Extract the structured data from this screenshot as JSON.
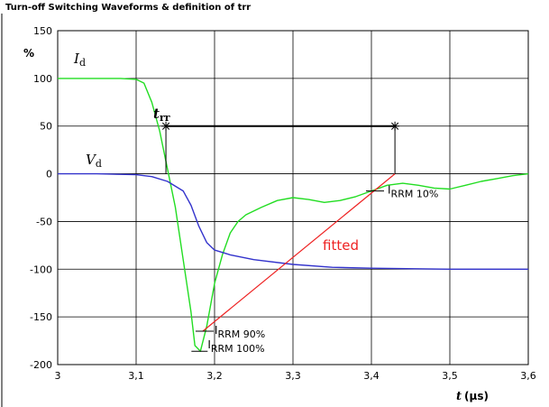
{
  "chart_data": {
    "type": "line",
    "title": "Turn-off  Switching Waveforms & definition of trr",
    "ylabel": "%",
    "xlabel_main": "t",
    "xlabel_unit": "(µs)",
    "xlim": [
      3.0,
      3.6
    ],
    "ylim": [
      -200,
      150
    ],
    "x_ticks": [
      3.0,
      3.1,
      3.2,
      3.3,
      3.4,
      3.5,
      3.6
    ],
    "x_tick_labels": [
      "3",
      "3,1",
      "3,2",
      "3,3",
      "3,4",
      "3,5",
      "3,6"
    ],
    "y_ticks": [
      150,
      100,
      50,
      0,
      -50,
      -100,
      -150,
      -200
    ],
    "y_tick_labels": [
      "150",
      "100",
      "50",
      "0",
      "-50",
      "-100",
      "-150",
      "-200"
    ],
    "grid": true,
    "series": [
      {
        "name": "Id",
        "color": "#22dd22",
        "points": [
          [
            3.0,
            100
          ],
          [
            3.02,
            100
          ],
          [
            3.04,
            100
          ],
          [
            3.06,
            100
          ],
          [
            3.08,
            100
          ],
          [
            3.1,
            99
          ],
          [
            3.11,
            95
          ],
          [
            3.12,
            75
          ],
          [
            3.13,
            45
          ],
          [
            3.14,
            5
          ],
          [
            3.15,
            -35
          ],
          [
            3.16,
            -90
          ],
          [
            3.17,
            -145
          ],
          [
            3.175,
            -180
          ],
          [
            3.182,
            -186
          ],
          [
            3.19,
            -160
          ],
          [
            3.2,
            -115
          ],
          [
            3.21,
            -85
          ],
          [
            3.22,
            -62
          ],
          [
            3.23,
            -50
          ],
          [
            3.24,
            -43
          ],
          [
            3.26,
            -35
          ],
          [
            3.28,
            -28
          ],
          [
            3.3,
            -25
          ],
          [
            3.32,
            -27
          ],
          [
            3.34,
            -30
          ],
          [
            3.36,
            -28
          ],
          [
            3.38,
            -24
          ],
          [
            3.4,
            -18
          ],
          [
            3.42,
            -12
          ],
          [
            3.44,
            -10
          ],
          [
            3.46,
            -12
          ],
          [
            3.48,
            -15
          ],
          [
            3.5,
            -16
          ],
          [
            3.52,
            -12
          ],
          [
            3.54,
            -8
          ],
          [
            3.56,
            -5
          ],
          [
            3.58,
            -2
          ],
          [
            3.6,
            0
          ]
        ]
      },
      {
        "name": "Vd",
        "color": "#3333cc",
        "points": [
          [
            3.0,
            0
          ],
          [
            3.05,
            0
          ],
          [
            3.1,
            -1
          ],
          [
            3.12,
            -3
          ],
          [
            3.14,
            -8
          ],
          [
            3.16,
            -18
          ],
          [
            3.17,
            -33
          ],
          [
            3.18,
            -55
          ],
          [
            3.19,
            -72
          ],
          [
            3.2,
            -80
          ],
          [
            3.22,
            -85
          ],
          [
            3.25,
            -90
          ],
          [
            3.3,
            -95
          ],
          [
            3.35,
            -98
          ],
          [
            3.4,
            -99
          ],
          [
            3.5,
            -100
          ],
          [
            3.6,
            -100
          ]
        ]
      },
      {
        "name": "fitted",
        "color": "#ee2222",
        "points": [
          [
            3.185,
            -165
          ],
          [
            3.43,
            0
          ]
        ]
      }
    ],
    "trr_bracket": {
      "x_start": 3.138,
      "x_end": 3.43,
      "y": 50
    },
    "annotations": {
      "id_label": {
        "main": "I",
        "sub": "d"
      },
      "vd_label": {
        "main": "V",
        "sub": "d"
      },
      "trr_label": {
        "main": "t",
        "sub": "rr"
      },
      "fitted_label": "fitted",
      "irrm10": {
        "main": "I",
        "sub": "RRM 10%",
        "x": 3.4,
        "y": -18
      },
      "irrm90": {
        "main": "I",
        "sub": "RRM 90%",
        "x": 3.185,
        "y": -165
      },
      "irrm100": {
        "main": "I",
        "sub": "RRM 100%",
        "x": 3.182,
        "y": -186
      }
    }
  }
}
